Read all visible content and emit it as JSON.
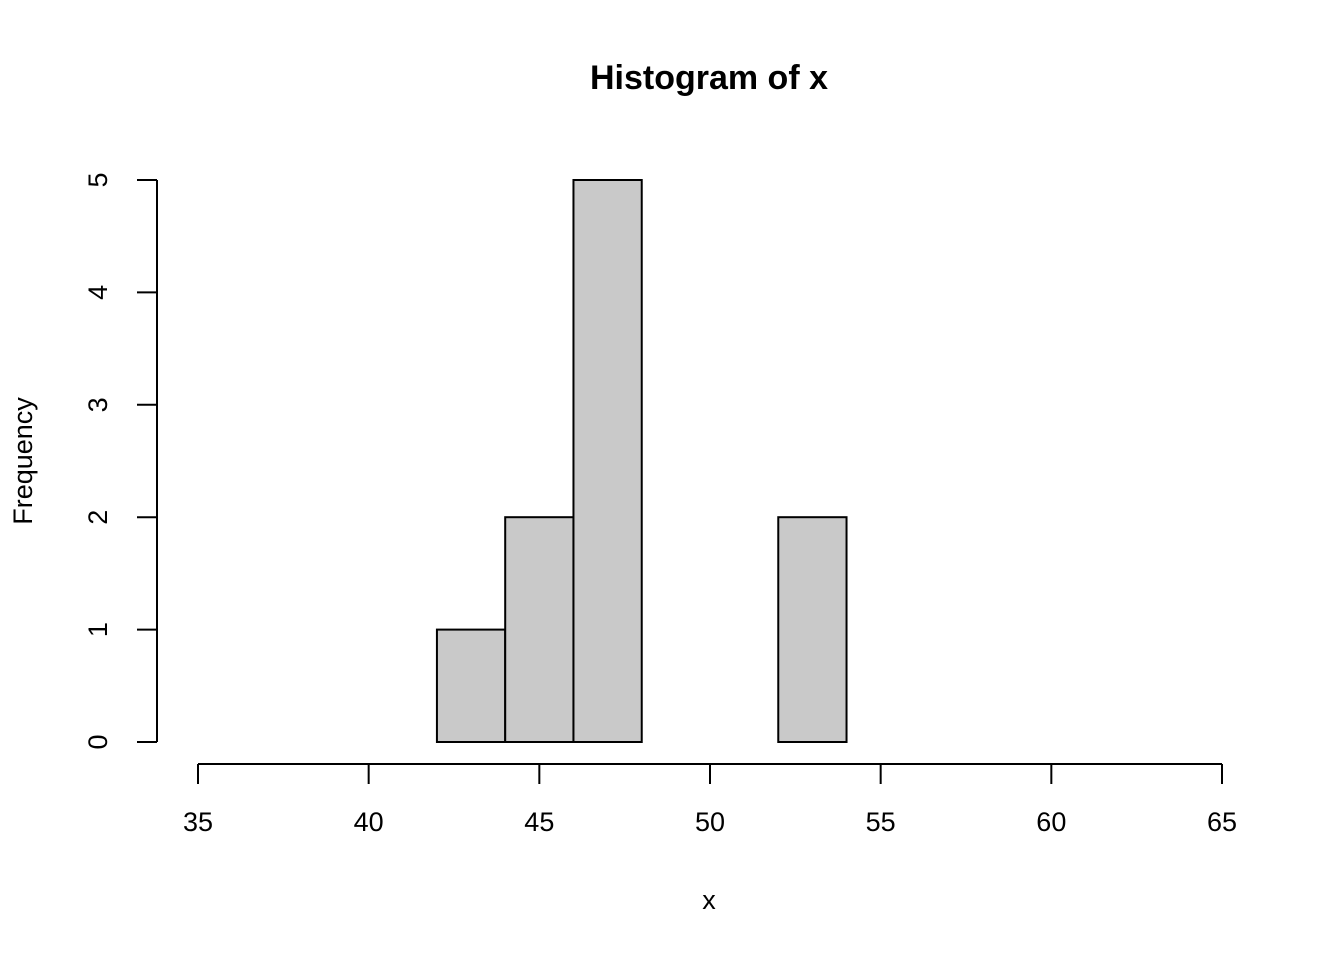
{
  "chart_data": {
    "type": "histogram",
    "title": "Histogram of x",
    "x_label": "x",
    "y_label": "Frequency",
    "bins": [
      42,
      44,
      46,
      48,
      50,
      52,
      54
    ],
    "values": [
      1,
      2,
      5,
      0,
      0,
      2
    ],
    "color": "#c9c9c9",
    "xlim": [
      35,
      65
    ],
    "xticks": [
      35,
      40,
      45,
      50,
      55,
      60,
      65
    ],
    "ylim": [
      0,
      5
    ],
    "yticks": [
      0,
      1,
      2,
      3,
      4,
      5
    ]
  }
}
